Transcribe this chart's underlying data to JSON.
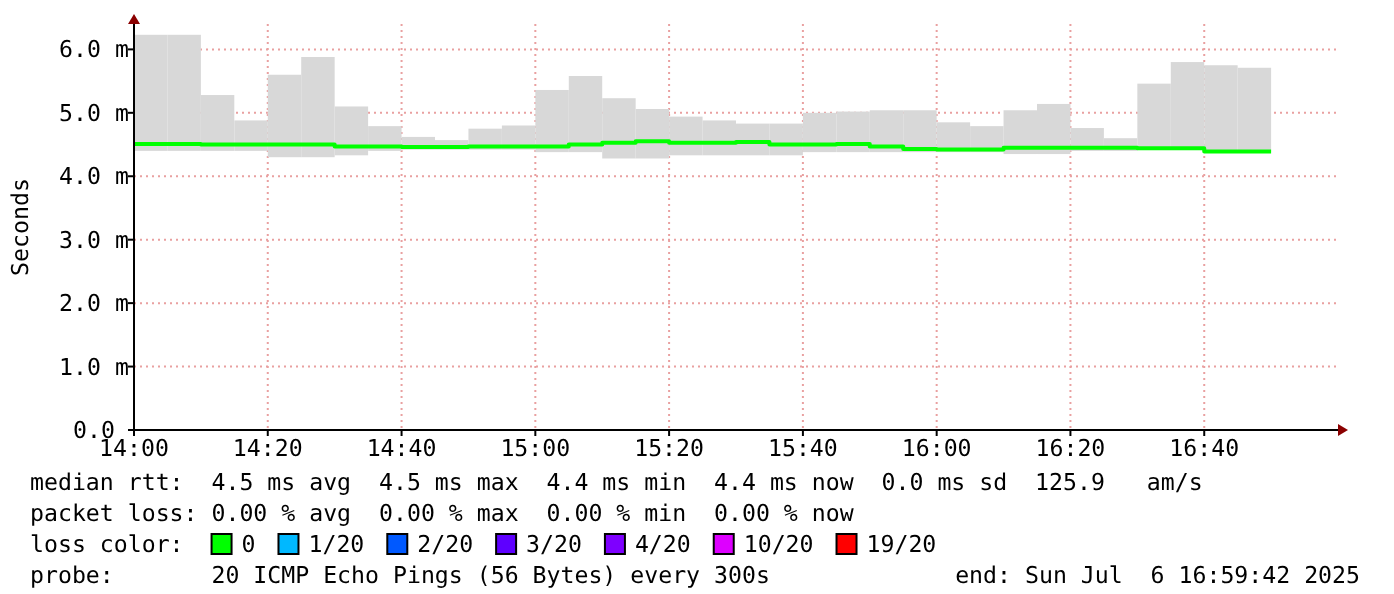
{
  "chart_data": {
    "type": "step",
    "ylabel": "Seconds",
    "legend_title": "loss color:",
    "legend": "bottom",
    "grid": true,
    "xlim": [
      14,
      17
    ],
    "xticks": [
      {
        "value": 14,
        "label": "14:00"
      },
      {
        "value": 14.3333,
        "label": "14:20"
      },
      {
        "value": 14.6667,
        "label": "14:40"
      },
      {
        "value": 15,
        "label": "15:00"
      },
      {
        "value": 15.3333,
        "label": "15:20"
      },
      {
        "value": 15.6667,
        "label": "15:40"
      },
      {
        "value": 16,
        "label": "16:00"
      },
      {
        "value": 16.3333,
        "label": "16:20"
      },
      {
        "value": 16.6667,
        "label": "16:40"
      }
    ],
    "ylim": [
      0,
      6.4
    ],
    "yticks": [
      {
        "value": 0,
        "label": "0.0"
      },
      {
        "value": 1,
        "label": "1.0 m"
      },
      {
        "value": 2,
        "label": "2.0 m"
      },
      {
        "value": 3,
        "label": "3.0 m"
      },
      {
        "value": 4,
        "label": "4.0 m"
      },
      {
        "value": 5,
        "label": "5.0 m"
      },
      {
        "value": 6,
        "label": "6.0 m"
      }
    ],
    "x": [
      14,
      14.0833,
      14.1667,
      14.25,
      14.3333,
      14.4167,
      14.5,
      14.5833,
      14.6667,
      14.75,
      14.8333,
      14.9167,
      15,
      15.0833,
      15.1667,
      15.25,
      15.3333,
      15.4167,
      15.5,
      15.5833,
      15.6667,
      15.75,
      15.8333,
      15.9167,
      16,
      16.0833,
      16.1667,
      16.25,
      16.3333,
      16.4167,
      16.5,
      16.5833,
      16.6667,
      16.75,
      16.8333
    ],
    "series": [
      {
        "type": "bar",
        "color": "#d8d8d8",
        "x": [
          14.0417,
          14.125,
          14.2083,
          14.2917,
          14.375,
          14.4583,
          14.5417,
          14.625,
          14.7083,
          14.7917,
          14.875,
          14.9583,
          15.0417,
          15.125,
          15.2083,
          15.2917,
          15.375,
          15.4583,
          15.5417,
          15.625,
          15.7083,
          15.7917,
          15.875,
          15.9583,
          16.0417,
          16.125,
          16.2083,
          16.2917,
          16.375,
          16.4583,
          16.5417,
          16.625,
          16.7083,
          16.7917
        ],
        "base": [
          4.4,
          4.4,
          4.4,
          4.4,
          4.3,
          4.3,
          4.33,
          4.4,
          4.42,
          4.42,
          4.42,
          4.42,
          4.38,
          4.38,
          4.28,
          4.28,
          4.33,
          4.33,
          4.33,
          4.33,
          4.38,
          4.38,
          4.38,
          4.38,
          4.38,
          4.38,
          4.35,
          4.35,
          4.4,
          4.4,
          4.42,
          4.42,
          4.38,
          4.38
        ],
        "values": [
          1.83,
          1.83,
          0.88,
          0.48,
          1.3,
          1.58,
          0.77,
          0.39,
          0.2,
          0.15,
          0.33,
          0.38,
          0.98,
          1.2,
          0.95,
          0.78,
          0.61,
          0.55,
          0.5,
          0.5,
          0.62,
          0.64,
          0.66,
          0.66,
          0.47,
          0.41,
          0.69,
          0.79,
          0.36,
          0.2,
          1.04,
          1.38,
          1.37,
          1.33
        ]
      },
      {
        "name": "0",
        "color": "#00ff00",
        "values": [
          4.51,
          4.51,
          4.5,
          4.5,
          4.5,
          4.5,
          4.47,
          4.47,
          4.46,
          4.46,
          4.47,
          4.47,
          4.47,
          4.5,
          4.53,
          4.55,
          4.53,
          4.53,
          4.54,
          4.5,
          4.5,
          4.51,
          4.47,
          4.43,
          4.42,
          4.42,
          4.45,
          4.45,
          4.45,
          4.45,
          4.44,
          4.44,
          4.39,
          4.39,
          4.39
        ]
      },
      {
        "name": "1/20",
        "color": "#00b8ff",
        "values": [
          null,
          null,
          null,
          null,
          null,
          null,
          null,
          null,
          null,
          null,
          null,
          null,
          null,
          null,
          null,
          null,
          null,
          null,
          null,
          null,
          null,
          null,
          null,
          null,
          null,
          null,
          null,
          null,
          null,
          null,
          null,
          null,
          null,
          null,
          null
        ]
      },
      {
        "name": "2/20",
        "color": "#0059ff",
        "values": [
          null,
          null,
          null,
          null,
          null,
          null,
          null,
          null,
          null,
          null,
          null,
          null,
          null,
          null,
          null,
          null,
          null,
          null,
          null,
          null,
          null,
          null,
          null,
          null,
          null,
          null,
          null,
          null,
          null,
          null,
          null,
          null,
          null,
          null,
          null
        ]
      },
      {
        "name": "3/20",
        "color": "#5e00ff",
        "values": [
          null,
          null,
          null,
          null,
          null,
          null,
          null,
          null,
          null,
          null,
          null,
          null,
          null,
          null,
          null,
          null,
          null,
          null,
          null,
          null,
          null,
          null,
          null,
          null,
          null,
          null,
          null,
          null,
          null,
          null,
          null,
          null,
          null,
          null,
          null
        ]
      },
      {
        "name": "4/20",
        "color": "#7e00ff",
        "values": [
          null,
          null,
          null,
          null,
          null,
          null,
          null,
          null,
          null,
          null,
          null,
          null,
          null,
          null,
          null,
          null,
          null,
          null,
          null,
          null,
          null,
          null,
          null,
          null,
          null,
          null,
          null,
          null,
          null,
          null,
          null,
          null,
          null,
          null,
          null
        ]
      },
      {
        "name": "10/20",
        "color": "#dd00ff",
        "values": [
          null,
          null,
          null,
          null,
          null,
          null,
          null,
          null,
          null,
          null,
          null,
          null,
          null,
          null,
          null,
          null,
          null,
          null,
          null,
          null,
          null,
          null,
          null,
          null,
          null,
          null,
          null,
          null,
          null,
          null,
          null,
          null,
          null,
          null,
          null
        ]
      },
      {
        "name": "19/20",
        "color": "#ff0000",
        "values": [
          null,
          null,
          null,
          null,
          null,
          null,
          null,
          null,
          null,
          null,
          null,
          null,
          null,
          null,
          null,
          null,
          null,
          null,
          null,
          null,
          null,
          null,
          null,
          null,
          null,
          null,
          null,
          null,
          null,
          null,
          null,
          null,
          null,
          null,
          null
        ]
      }
    ],
    "annotations": [
      "median rtt:  4.5 ms avg  4.5 ms max  4.4 ms min  4.4 ms now  0.0 ms sd  125.9   am/s",
      "packet loss: 0.00 % avg  0.00 % max  0.00 % min  0.00 % now",
      "probe:       20 ICMP Echo Pings (56 Bytes) every 300s",
      "end: Sun Jul  6 16:59:42 2025"
    ]
  }
}
